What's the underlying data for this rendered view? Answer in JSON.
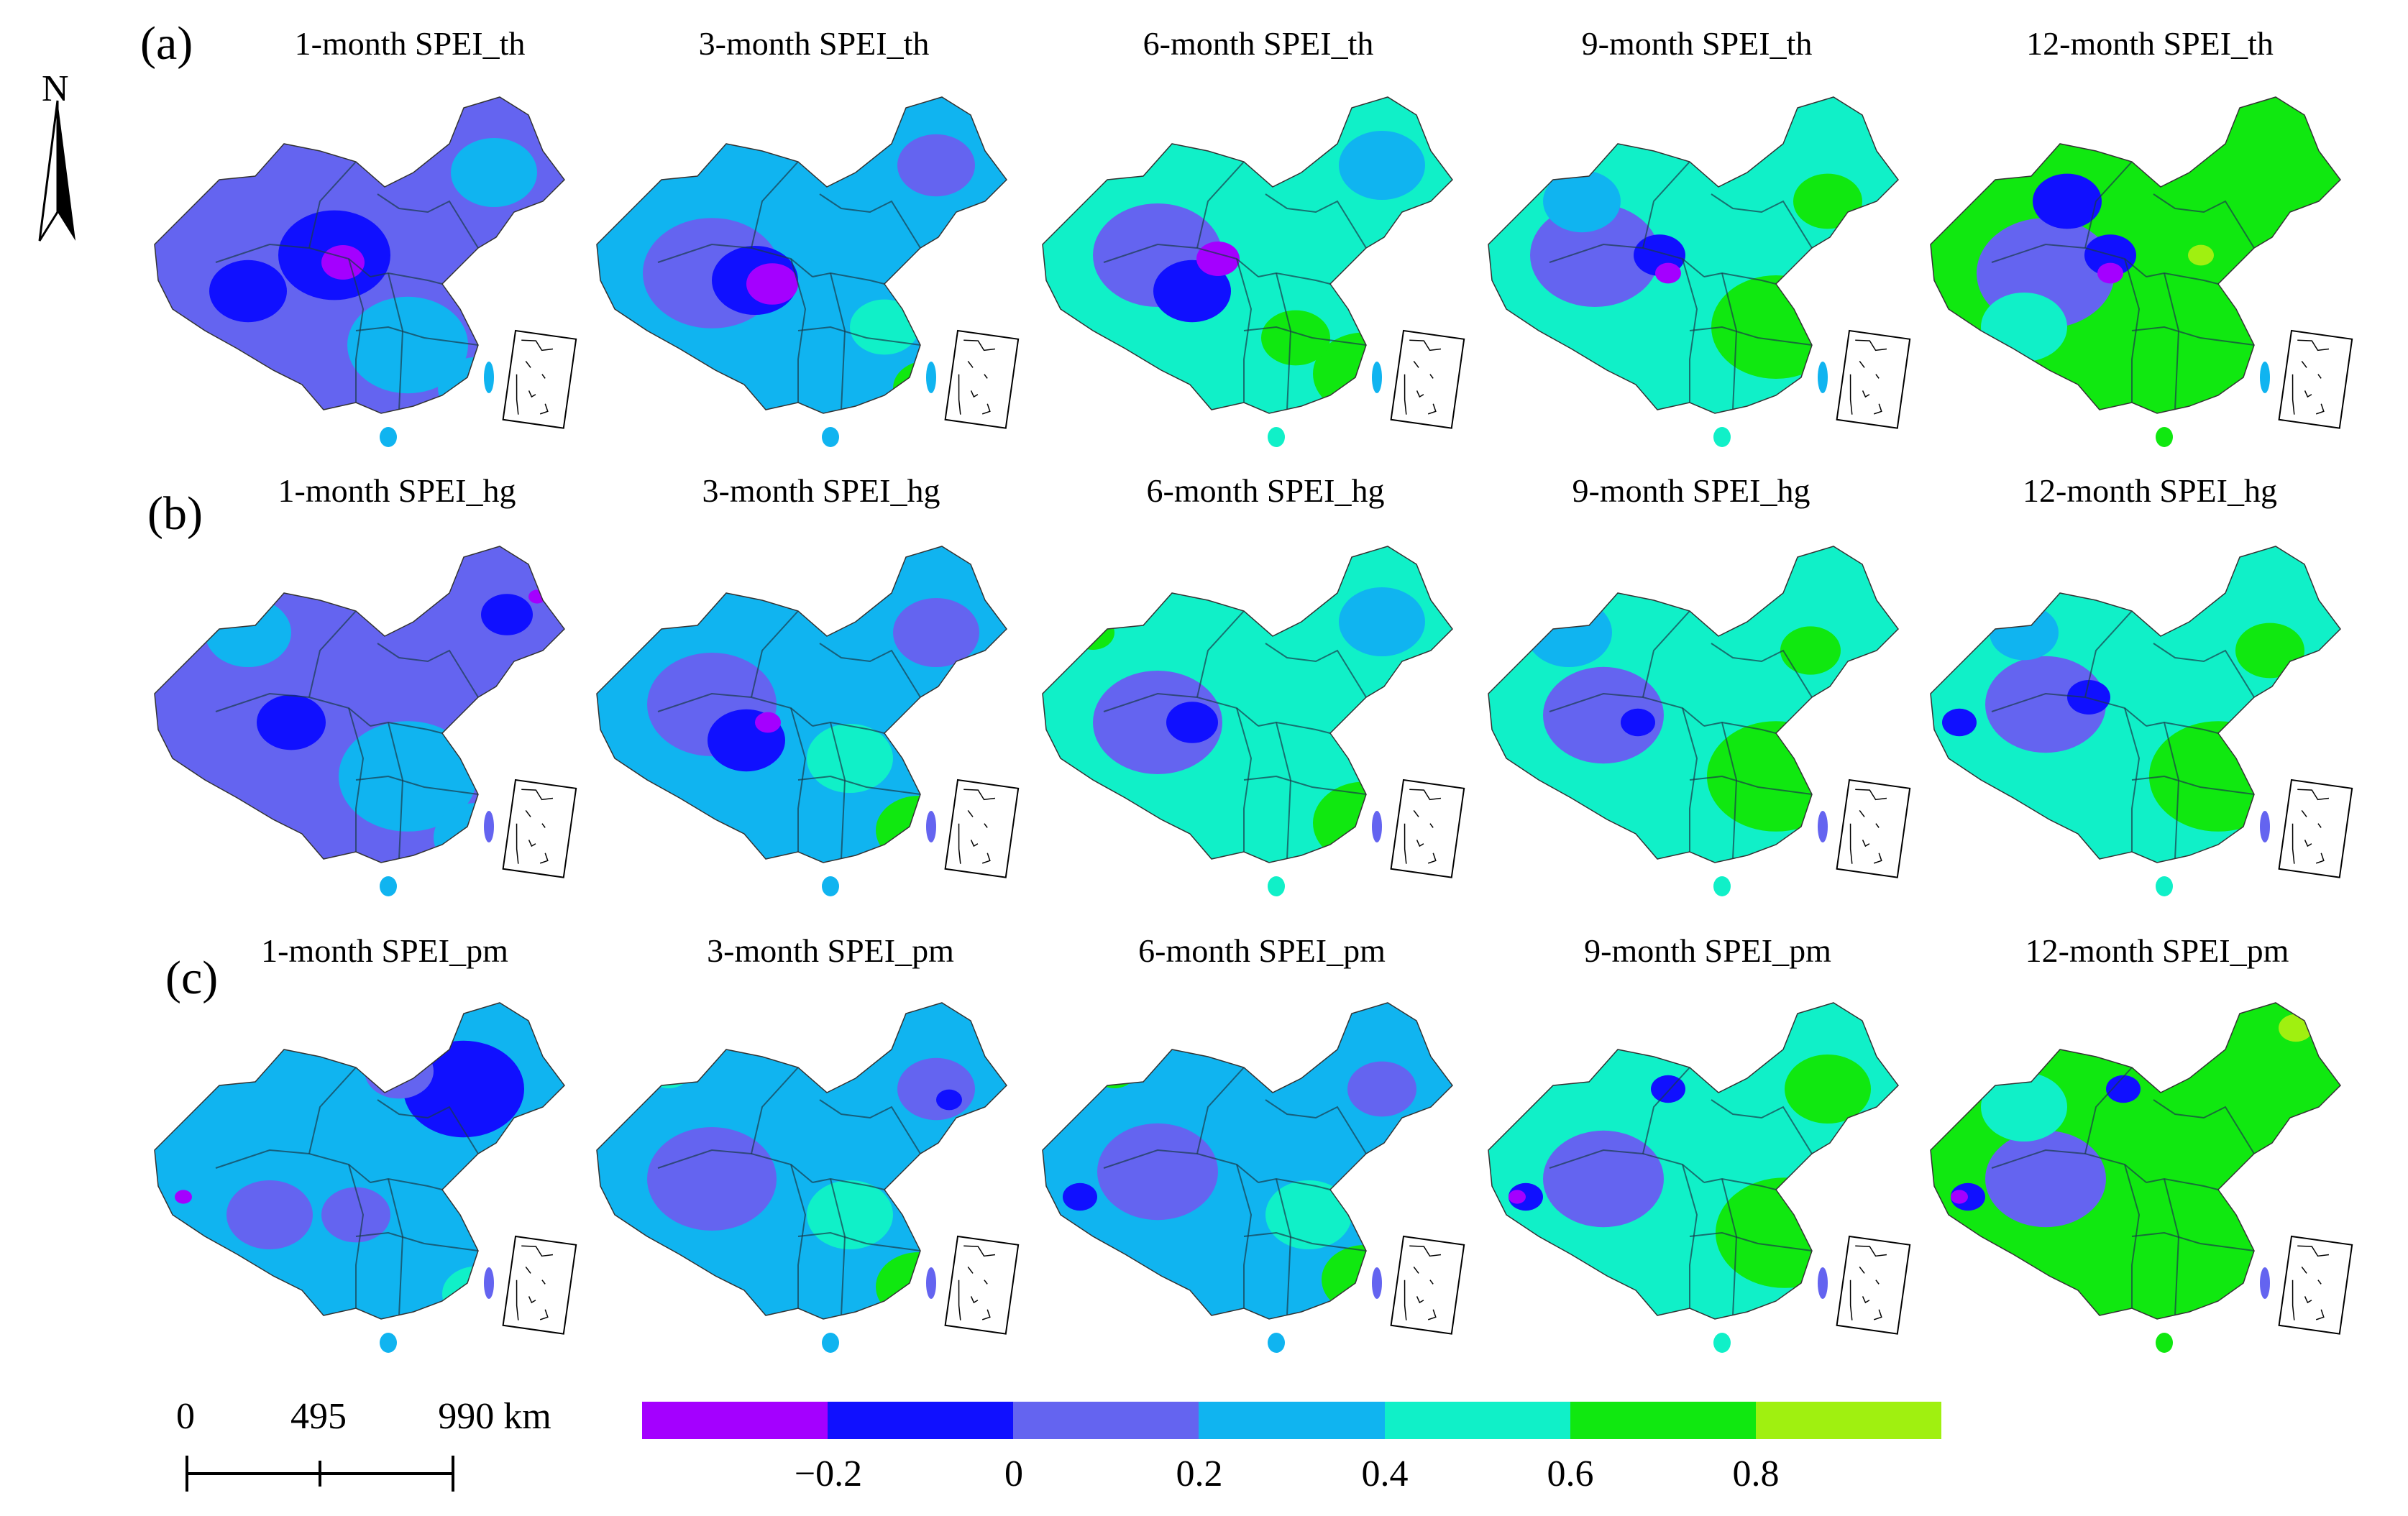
{
  "north_arrow": {
    "letter": "N"
  },
  "rows": [
    {
      "label": "(a)",
      "titles": [
        "1-month SPEI_th",
        "3-month SPEI_th",
        "6-month SPEI_th",
        "9-month SPEI_th",
        "12-month SPEI_th"
      ]
    },
    {
      "label": "(b)",
      "titles": [
        "1-month SPEI_hg",
        "3-month SPEI_hg",
        "6-month SPEI_hg",
        "9-month SPEI_hg",
        "12-month SPEI_hg"
      ]
    },
    {
      "label": "(c)",
      "titles": [
        "1-month SPEI_pm",
        "3-month SPEI_pm",
        "6-month SPEI_pm",
        "9-month SPEI_pm",
        "12-month SPEI_pm"
      ]
    }
  ],
  "scale_bar": {
    "labels": [
      "0",
      "495",
      "990 km"
    ]
  },
  "legend": {
    "colors": [
      "#a400ff",
      "#1010ff",
      "#6464f0",
      "#10b4f0",
      "#10f0c8",
      "#10e810",
      "#a0f010"
    ],
    "ticks": [
      "−0.2",
      "0",
      "0.2",
      "0.4",
      "0.6",
      "0.8"
    ]
  },
  "maps": [
    [
      {
        "base": "#6464f0",
        "blobs": [
          [
            "#1010ff",
            0.45,
            0.45,
            0.13
          ],
          [
            "#a400ff",
            0.47,
            0.47,
            0.05
          ],
          [
            "#10b4f0",
            0.82,
            0.22,
            0.1
          ],
          [
            "#10b4f0",
            0.62,
            0.7,
            0.14
          ],
          [
            "#1010ff",
            0.25,
            0.55,
            0.09
          ],
          [
            "#10b4f0",
            0.78,
            0.82,
            0.09
          ]
        ]
      },
      {
        "base": "#10b4f0",
        "blobs": [
          [
            "#6464f0",
            0.3,
            0.5,
            0.16
          ],
          [
            "#1010ff",
            0.4,
            0.52,
            0.1
          ],
          [
            "#a400ff",
            0.44,
            0.53,
            0.06
          ],
          [
            "#6464f0",
            0.82,
            0.2,
            0.09
          ],
          [
            "#10e810",
            0.8,
            0.82,
            0.08
          ],
          [
            "#10f0c8",
            0.7,
            0.65,
            0.08
          ]
        ]
      },
      {
        "base": "#10f0c8",
        "blobs": [
          [
            "#6464f0",
            0.3,
            0.45,
            0.15
          ],
          [
            "#1010ff",
            0.38,
            0.55,
            0.09
          ],
          [
            "#a400ff",
            0.44,
            0.46,
            0.05
          ],
          [
            "#10b4f0",
            0.82,
            0.2,
            0.1
          ],
          [
            "#10e810",
            0.78,
            0.78,
            0.12
          ],
          [
            "#10e810",
            0.62,
            0.68,
            0.08
          ]
        ]
      },
      {
        "base": "#10f0c8",
        "blobs": [
          [
            "#6464f0",
            0.28,
            0.45,
            0.15
          ],
          [
            "#1010ff",
            0.43,
            0.45,
            0.06
          ],
          [
            "#a400ff",
            0.45,
            0.5,
            0.03
          ],
          [
            "#10e810",
            0.7,
            0.65,
            0.15
          ],
          [
            "#10e810",
            0.82,
            0.3,
            0.08
          ],
          [
            "#10b4f0",
            0.25,
            0.3,
            0.09
          ]
        ]
      },
      {
        "base": "#10e810",
        "blobs": [
          [
            "#6464f0",
            0.3,
            0.5,
            0.16
          ],
          [
            "#1010ff",
            0.35,
            0.3,
            0.08
          ],
          [
            "#1010ff",
            0.45,
            0.45,
            0.06
          ],
          [
            "#a400ff",
            0.45,
            0.5,
            0.03
          ],
          [
            "#10f0c8",
            0.25,
            0.65,
            0.1
          ],
          [
            "#a0f010",
            0.66,
            0.45,
            0.03
          ]
        ]
      }
    ],
    [
      {
        "base": "#6464f0",
        "blobs": [
          [
            "#10b4f0",
            0.62,
            0.65,
            0.16
          ],
          [
            "#10b4f0",
            0.25,
            0.25,
            0.1
          ],
          [
            "#1010ff",
            0.35,
            0.5,
            0.08
          ],
          [
            "#1010ff",
            0.85,
            0.2,
            0.06
          ],
          [
            "#a400ff",
            0.92,
            0.15,
            0.02
          ],
          [
            "#10b4f0",
            0.78,
            0.82,
            0.1
          ]
        ]
      },
      {
        "base": "#10b4f0",
        "blobs": [
          [
            "#6464f0",
            0.3,
            0.45,
            0.15
          ],
          [
            "#1010ff",
            0.38,
            0.55,
            0.09
          ],
          [
            "#a400ff",
            0.43,
            0.5,
            0.03
          ],
          [
            "#6464f0",
            0.82,
            0.25,
            0.1
          ],
          [
            "#10e810",
            0.78,
            0.8,
            0.1
          ],
          [
            "#10f0c8",
            0.62,
            0.6,
            0.1
          ]
        ]
      },
      {
        "base": "#10f0c8",
        "blobs": [
          [
            "#6464f0",
            0.3,
            0.5,
            0.15
          ],
          [
            "#1010ff",
            0.38,
            0.5,
            0.06
          ],
          [
            "#10e810",
            0.78,
            0.78,
            0.12
          ],
          [
            "#10b4f0",
            0.82,
            0.22,
            0.1
          ],
          [
            "#10e810",
            0.15,
            0.25,
            0.05
          ],
          [
            "#a0f010",
            0.78,
            0.88,
            0.03
          ]
        ]
      },
      {
        "base": "#10f0c8",
        "blobs": [
          [
            "#6464f0",
            0.3,
            0.48,
            0.14
          ],
          [
            "#1010ff",
            0.38,
            0.5,
            0.04
          ],
          [
            "#10e810",
            0.7,
            0.65,
            0.16
          ],
          [
            "#10e810",
            0.78,
            0.3,
            0.07
          ],
          [
            "#10b4f0",
            0.22,
            0.25,
            0.1
          ]
        ]
      },
      {
        "base": "#10f0c8",
        "blobs": [
          [
            "#6464f0",
            0.3,
            0.45,
            0.14
          ],
          [
            "#1010ff",
            0.4,
            0.43,
            0.05
          ],
          [
            "#1010ff",
            0.1,
            0.5,
            0.04
          ],
          [
            "#10e810",
            0.7,
            0.65,
            0.16
          ],
          [
            "#10e810",
            0.82,
            0.3,
            0.08
          ],
          [
            "#10b4f0",
            0.25,
            0.25,
            0.08
          ]
        ]
      }
    ],
    [
      {
        "base": "#10b4f0",
        "blobs": [
          [
            "#1010ff",
            0.75,
            0.25,
            0.14
          ],
          [
            "#6464f0",
            0.6,
            0.2,
            0.08
          ],
          [
            "#6464f0",
            0.3,
            0.6,
            0.1
          ],
          [
            "#a400ff",
            0.1,
            0.55,
            0.02
          ],
          [
            "#10f0c8",
            0.78,
            0.82,
            0.08
          ],
          [
            "#6464f0",
            0.5,
            0.6,
            0.08
          ]
        ]
      },
      {
        "base": "#10b4f0",
        "blobs": [
          [
            "#6464f0",
            0.3,
            0.5,
            0.15
          ],
          [
            "#6464f0",
            0.82,
            0.25,
            0.09
          ],
          [
            "#1010ff",
            0.85,
            0.28,
            0.03
          ],
          [
            "#10e810",
            0.78,
            0.8,
            0.1
          ],
          [
            "#10f0c8",
            0.62,
            0.6,
            0.1
          ],
          [
            "#10f0c8",
            0.2,
            0.2,
            0.05
          ]
        ]
      },
      {
        "base": "#10b4f0",
        "blobs": [
          [
            "#6464f0",
            0.3,
            0.48,
            0.14
          ],
          [
            "#1010ff",
            0.12,
            0.55,
            0.04
          ],
          [
            "#10e810",
            0.78,
            0.78,
            0.1
          ],
          [
            "#10f0c8",
            0.65,
            0.6,
            0.1
          ],
          [
            "#10e810",
            0.2,
            0.2,
            0.05
          ],
          [
            "#6464f0",
            0.82,
            0.25,
            0.08
          ]
        ]
      },
      {
        "base": "#10f0c8",
        "blobs": [
          [
            "#6464f0",
            0.3,
            0.5,
            0.14
          ],
          [
            "#1010ff",
            0.12,
            0.55,
            0.04
          ],
          [
            "#a400ff",
            0.1,
            0.55,
            0.02
          ],
          [
            "#10e810",
            0.72,
            0.65,
            0.16
          ],
          [
            "#10e810",
            0.82,
            0.25,
            0.1
          ],
          [
            "#a0f010",
            0.15,
            0.2,
            0.03
          ],
          [
            "#1010ff",
            0.45,
            0.25,
            0.04
          ]
        ]
      },
      {
        "base": "#10e810",
        "blobs": [
          [
            "#6464f0",
            0.3,
            0.5,
            0.14
          ],
          [
            "#1010ff",
            0.12,
            0.55,
            0.04
          ],
          [
            "#a400ff",
            0.1,
            0.55,
            0.02
          ],
          [
            "#1010ff",
            0.48,
            0.25,
            0.04
          ],
          [
            "#10f0c8",
            0.25,
            0.3,
            0.1
          ],
          [
            "#a0f010",
            0.88,
            0.08,
            0.04
          ]
        ]
      }
    ]
  ]
}
